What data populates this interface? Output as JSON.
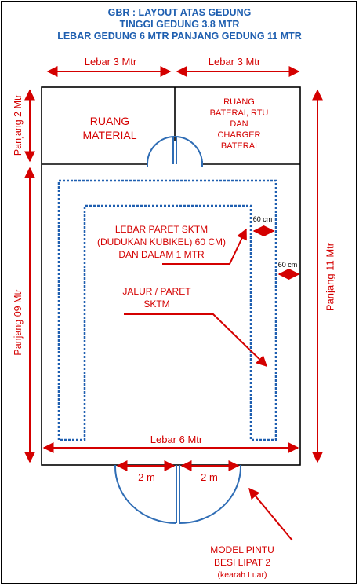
{
  "title": {
    "line1": "GBR : LAYOUT ATAS GEDUNG",
    "line2": "TINGGI GEDUNG 3.8 MTR",
    "line3": "LEBAR GEDUNG 6 MTR PANJANG GEDUNG 11 MTR"
  },
  "dimensions": {
    "top_left_width": "Lebar 3 Mtr",
    "top_right_width": "Lebar 3 Mtr",
    "left_upper_length": "Panjang 2 Mtr",
    "left_lower_length": "Panjang 09 Mtr",
    "right_total_length": "Panjang 11 Mtr",
    "bottom_width": "Lebar 6  Mtr",
    "door_left": "2 m",
    "door_right": "2 m",
    "trench_inner_width": "60 cm",
    "trench_outer_width": "60 cm"
  },
  "rooms": {
    "material": [
      "RUANG",
      "MATERIAL"
    ],
    "battery": [
      "RUANG",
      "BATERAI, RTU",
      "DAN",
      "CHARGER",
      "BATERAI"
    ]
  },
  "annotations": {
    "trench_spec": [
      "LEBAR PARET SKTM",
      "(DUDUKAN KUBIKEL) 60 CM)",
      "DAN DALAM 1 MTR"
    ],
    "trench_path": [
      "JALUR / PARET",
      "SKTM"
    ],
    "door_model": [
      "MODEL PINTU",
      "BESI LIPAT 2",
      "(kearah Luar)"
    ]
  },
  "colors": {
    "dimension": "#d40000",
    "title": "#1f5fb0",
    "trench": "#1f5fb0",
    "door": "#2f6db5",
    "wall": "#000000"
  }
}
